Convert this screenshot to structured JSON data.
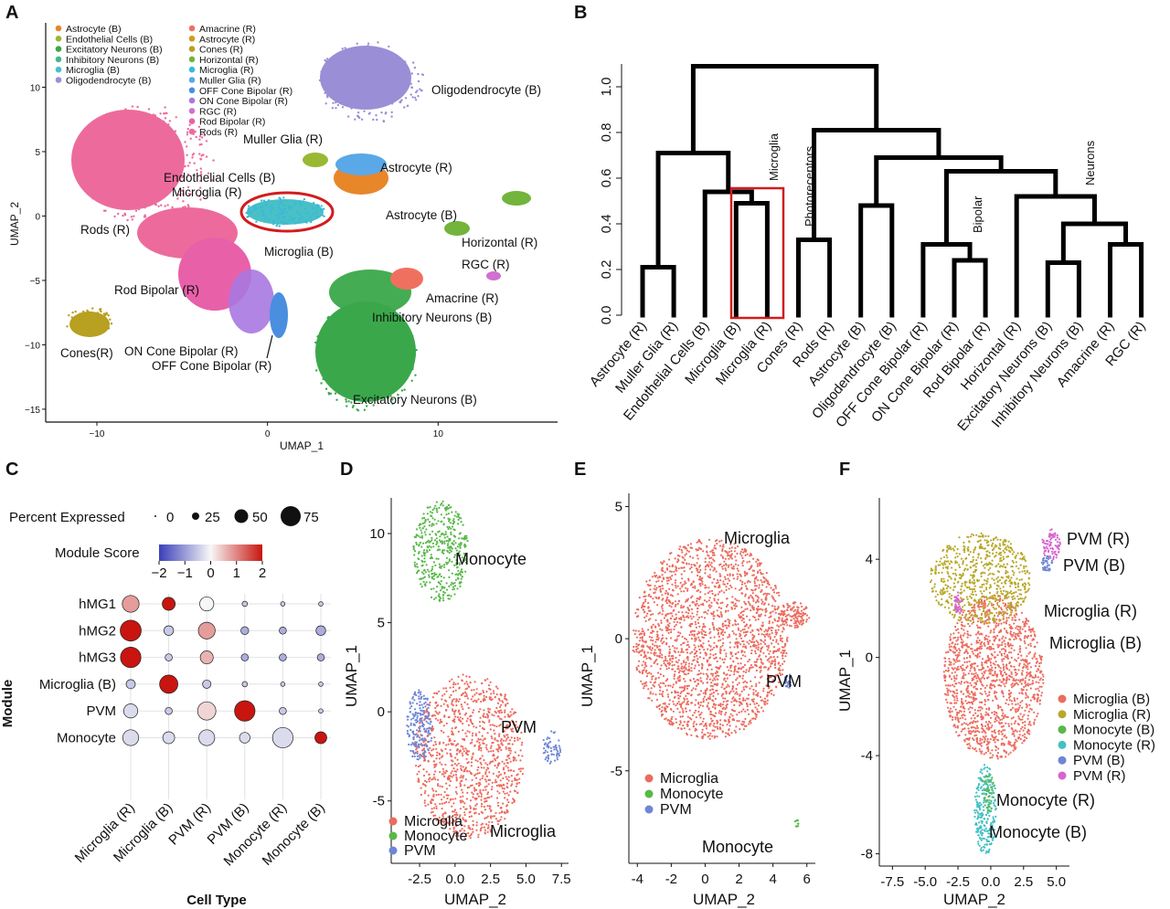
{
  "panels": {
    "a": {
      "label": "A",
      "xlabel": "UMAP_1",
      "ylabel": "UMAP_2",
      "xticks": [
        "−10",
        "0",
        "10"
      ],
      "yticks": [
        "10",
        "5",
        "0",
        "−5",
        "−10",
        "−15"
      ],
      "legend_col1": [
        "Astrocyte (B)",
        "Endothelial Cells (B)",
        "Excitatory Neurons (B)",
        "Inhibitory Neurons (B)",
        "Microglia (B)",
        "Oligodendrocyte (B)"
      ],
      "legend_col1_colors": [
        "#e8862a",
        "#9ab832",
        "#3aa84a",
        "#45b68e",
        "#48c0c6",
        "#9a8fd6"
      ],
      "legend_col2": [
        "Amacrine (R)",
        "Astrocyte (R)",
        "Cones (R)",
        "Horizontal (R)",
        "Microglia (R)",
        "Muller Glia (R)",
        "OFF Cone Bipolar (R)",
        "ON Cone Bipolar (R)",
        "RGC (R)",
        "Rod Bipolar (R)",
        "Rods (R)"
      ],
      "legend_col2_colors": [
        "#f07060",
        "#d09a20",
        "#b8a020",
        "#72b43c",
        "#3cb8d8",
        "#5aa8e8",
        "#4a8ee0",
        "#a878e0",
        "#d070d0",
        "#e860a8",
        "#ec6b9c"
      ],
      "cluster_labels": [
        "Oligodendrocyte (B)",
        "Muller Glia (R)",
        "Astrocyte (R)",
        "Endothelial Cells (B)",
        "Microglia (R)",
        "Rods (R)",
        "Astrocyte (B)",
        "Horizontal (R)",
        "Microglia (B)",
        "RGC (R)",
        "Rod Bipolar (R)",
        "Amacrine (R)",
        "Inhibitory Neurons (B)",
        "Cones(R)",
        "ON Cone Bipolar (R)",
        "OFF Cone Bipolar (R)",
        "Excitatory Neurons (B)"
      ]
    },
    "b": {
      "label": "B",
      "yticks": [
        "0.0",
        "0.2",
        "0.4",
        "0.6",
        "0.8",
        "1.0"
      ],
      "group_labels": [
        "Microglia",
        "Photoreceptors",
        "Bipolar",
        "Neurons"
      ]
    },
    "c": {
      "label": "C",
      "size_legend_title": "Percent Expressed",
      "size_legend_values": [
        "0",
        "25",
        "50",
        "75"
      ],
      "color_legend_title": "Module Score",
      "color_legend_ticks": [
        "−2",
        "−1",
        "0",
        "1",
        "2"
      ],
      "ylabel": "Module",
      "xlabel": "Cell Type"
    },
    "d": {
      "label": "D",
      "xlabel": "UMAP_2",
      "ylabel": "UMAP_1",
      "xticks": [
        "-2.5",
        "0.0",
        "2.5",
        "5.0",
        "7.5"
      ],
      "yticks": [
        "10",
        "5",
        "0",
        "-5"
      ],
      "cluster_labels": [
        "Monocyte",
        "PVM",
        "Microglia"
      ],
      "legend": [
        "Microglia",
        "Monocyte",
        "PVM"
      ],
      "legend_colors": [
        "#ec6b5e",
        "#58b848",
        "#6e86d6"
      ]
    },
    "e": {
      "label": "E",
      "xlabel": "UMAP_2",
      "ylabel": "UMAP_1",
      "xticks": [
        "-4",
        "-2",
        "0",
        "2",
        "4",
        "6"
      ],
      "yticks": [
        "5",
        "0",
        "-5"
      ],
      "cluster_labels": [
        "Microglia",
        "PVM",
        "Monocyte"
      ],
      "legend": [
        "Microglia",
        "Monocyte",
        "PVM"
      ],
      "legend_colors": [
        "#ec6b5e",
        "#58b848",
        "#6e86d6"
      ]
    },
    "f": {
      "label": "F",
      "xlabel": "UMAP_2",
      "ylabel": "UMAP_1",
      "xticks": [
        "-7.5",
        "-5.0",
        "-2.5",
        "0.0",
        "2.5",
        "5.0"
      ],
      "yticks": [
        "4",
        "0",
        "-4",
        "-8"
      ],
      "cluster_labels": [
        "PVM (R)",
        "PVM (B)",
        "Microglia (R)",
        "Microglia (B)",
        "Monocyte (R)",
        "Monocyte (B)"
      ],
      "legend": [
        "Microglia (B)",
        "Microglia (R)",
        "Monocyte (B)",
        "Monocyte (R)",
        "PVM (B)",
        "PVM (R)"
      ],
      "legend_colors": [
        "#ec6b5e",
        "#b8a82a",
        "#58b848",
        "#44c0c4",
        "#6e86d6",
        "#d864d0"
      ]
    }
  },
  "chart_data": [
    {
      "type": "scatter",
      "panel": "A",
      "xlabel": "UMAP_1",
      "ylabel": "UMAP_2",
      "xlim": [
        -13,
        17
      ],
      "ylim": [
        -16,
        15
      ],
      "series": [
        {
          "name": "Rods (R)",
          "centroid": [
            -8.5,
            1
          ]
        },
        {
          "name": "Oligodendrocyte (B)",
          "centroid": [
            7,
            10.5
          ]
        },
        {
          "name": "Excitatory Neurons (B)",
          "centroid": [
            5.5,
            -11.5
          ]
        },
        {
          "name": "Microglia (B)",
          "centroid": [
            2.2,
            -0.2
          ]
        },
        {
          "name": "Cones (R)",
          "centroid": [
            -10.5,
            -8.5
          ]
        }
      ]
    },
    {
      "type": "dendrogram",
      "panel": "B",
      "ylim": [
        0,
        1.1
      ],
      "leaves": [
        "Astrocyte (R)",
        "Muller Glia (R)",
        "Endothelial Cells (B)",
        "Microglia (B)",
        "Microglia (R)",
        "Cones (R)",
        "Rods (R)",
        "Astrocyte (B)",
        "Oligodendrocyte (B)",
        "OFF Cone Bipolar (R)",
        "ON Cone Bipolar (R)",
        "Rod Bipolar (R)",
        "Horizontal (R)",
        "Excitatory Neurons (B)",
        "Inhibitory Neurons (B)",
        "Amacrine (R)",
        "RGC (R)"
      ],
      "merges": [
        {
          "a": 0,
          "b": 1,
          "height": 0.21
        },
        {
          "a": 3,
          "b": 4,
          "height": 0.49
        },
        {
          "a": 2,
          "b": "n1",
          "height": 0.54
        },
        {
          "a": "n0",
          "b": "n2",
          "height": 0.71
        },
        {
          "a": 5,
          "b": 6,
          "height": 0.33
        },
        {
          "a": 7,
          "b": 8,
          "height": 0.48
        },
        {
          "a": 10,
          "b": 11,
          "height": 0.24
        },
        {
          "a": 9,
          "b": "n6",
          "height": 0.31
        },
        {
          "a": 13,
          "b": 14,
          "height": 0.23
        },
        {
          "a": 15,
          "b": 16,
          "height": 0.31
        },
        {
          "a": "n8",
          "b": "n9",
          "height": 0.4
        },
        {
          "a": 12,
          "b": "n10",
          "height": 0.52
        },
        {
          "a": "n7",
          "b": "n11",
          "height": 0.63
        },
        {
          "a": "n5",
          "b": "n12",
          "height": 0.69
        },
        {
          "a": "n4",
          "b": "n13",
          "height": 0.81
        },
        {
          "a": "n3",
          "b": "n14",
          "height": 1.09
        }
      ],
      "highlight_leaves": [
        3,
        4
      ]
    },
    {
      "type": "heatmap",
      "panel": "C",
      "rows": [
        "hMG1",
        "hMG2",
        "hMG3",
        "Microglia (B)",
        "PVM",
        "Monocyte"
      ],
      "columns": [
        "Microglia (R)",
        "Microglia (B)",
        "PVM (R)",
        "PVM (B)",
        "Monocyte (R)",
        "Monocyte (B)"
      ],
      "color_range": [
        -2,
        2
      ],
      "size_range": [
        0,
        75
      ],
      "score": [
        [
          0.8,
          2.0,
          0.0,
          -0.5,
          -0.5,
          -0.5
        ],
        [
          2.0,
          -0.5,
          0.8,
          -0.8,
          -0.8,
          -0.8
        ],
        [
          2.0,
          -0.5,
          0.6,
          -0.8,
          -0.8,
          -0.8
        ],
        [
          -0.5,
          2.0,
          -0.5,
          -0.5,
          -0.5,
          -0.5
        ],
        [
          -0.3,
          -0.5,
          0.3,
          2.0,
          -0.5,
          -0.5
        ],
        [
          -0.3,
          -0.3,
          -0.3,
          -0.3,
          -0.3,
          2.0
        ]
      ],
      "pct": [
        [
          45,
          25,
          30,
          2,
          1,
          1
        ],
        [
          75,
          12,
          45,
          7,
          5,
          12
        ],
        [
          70,
          5,
          25,
          5,
          5,
          5
        ],
        [
          10,
          55,
          8,
          2,
          1,
          1
        ],
        [
          30,
          5,
          55,
          70,
          5,
          1
        ],
        [
          40,
          20,
          40,
          15,
          70,
          20
        ]
      ]
    },
    {
      "type": "scatter",
      "panel": "D",
      "xlabel": "UMAP_2",
      "ylabel": "UMAP_1",
      "xlim": [
        -4.5,
        8
      ],
      "ylim": [
        -8.5,
        12
      ],
      "series": [
        {
          "name": "Microglia",
          "centroid": [
            1,
            -2.5
          ]
        },
        {
          "name": "Monocyte",
          "centroid": [
            -1,
            9
          ]
        },
        {
          "name": "PVM",
          "centroid": [
            6,
            -1
          ]
        }
      ]
    },
    {
      "type": "scatter",
      "panel": "E",
      "xlabel": "UMAP_2",
      "ylabel": "UMAP_1",
      "xlim": [
        -4.5,
        6.5
      ],
      "ylim": [
        -8.5,
        5.5
      ],
      "series": [
        {
          "name": "Microglia",
          "centroid": [
            0,
            0
          ]
        },
        {
          "name": "Monocyte",
          "centroid": [
            5.3,
            -7
          ]
        },
        {
          "name": "PVM",
          "centroid": [
            5,
            -1.6
          ]
        }
      ]
    },
    {
      "type": "scatter",
      "panel": "F",
      "xlabel": "UMAP_2",
      "ylabel": "UMAP_1",
      "xlim": [
        -8.5,
        6
      ],
      "ylim": [
        -8.5,
        6.5
      ],
      "series": [
        {
          "name": "Microglia (B)",
          "centroid": [
            0,
            -1
          ]
        },
        {
          "name": "Microglia (R)",
          "centroid": [
            -1,
            3
          ]
        },
        {
          "name": "Monocyte (B)",
          "centroid": [
            -0.3,
            -6
          ]
        },
        {
          "name": "Monocyte (R)",
          "centroid": [
            -0.5,
            -6.5
          ]
        },
        {
          "name": "PVM (B)",
          "centroid": [
            4.5,
            4
          ]
        },
        {
          "name": "PVM (R)",
          "centroid": [
            4.7,
            4.6
          ]
        }
      ]
    }
  ]
}
